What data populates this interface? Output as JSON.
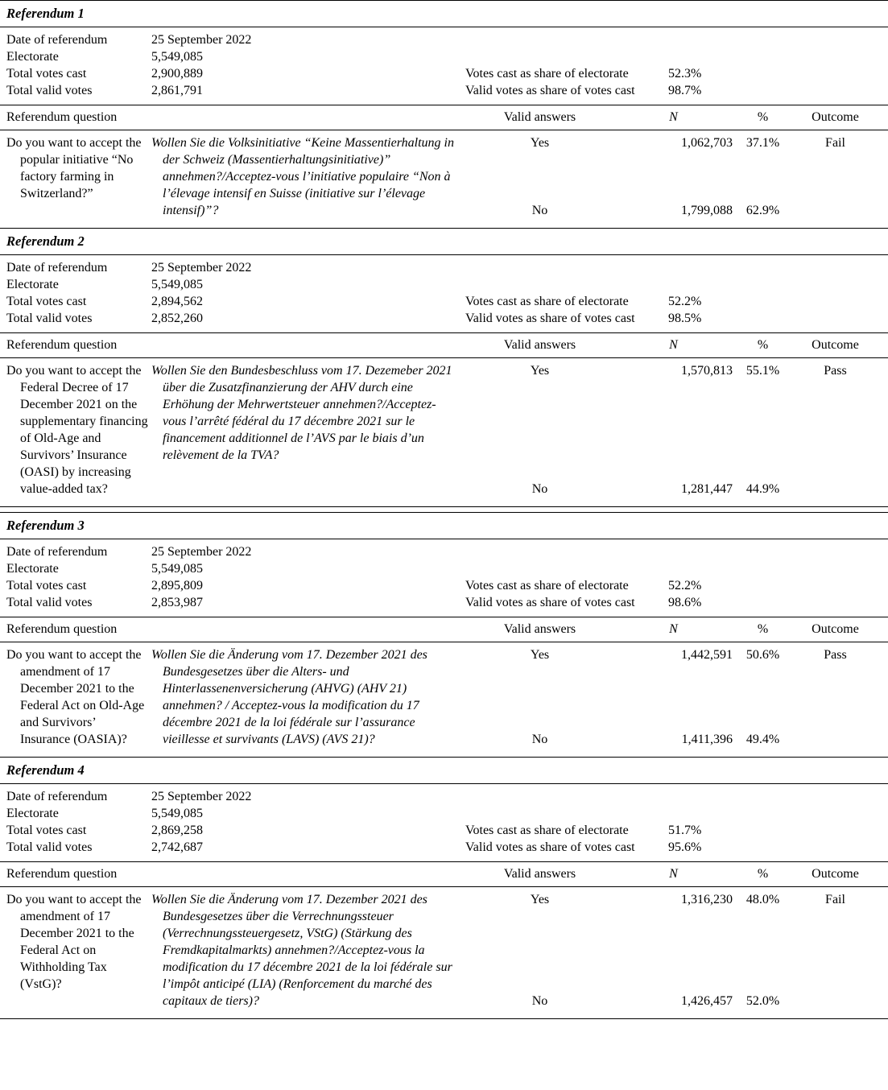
{
  "labels": {
    "date": "Date of referendum",
    "electorate": "Electorate",
    "total_votes_cast": "Total votes cast",
    "total_valid_votes": "Total valid votes",
    "votes_cast_share": "Votes cast as share of electorate",
    "valid_votes_share": "Valid votes as share of votes cast",
    "question_header": "Referendum question",
    "valid_answers_header": "Valid answers",
    "n_header": "N",
    "pct_header": "%",
    "outcome_header": "Outcome",
    "yes": "Yes",
    "no": "No"
  },
  "referendums": [
    {
      "title": "Referendum 1",
      "date": "25 September 2022",
      "electorate": "5,549,085",
      "total_votes_cast": "2,900,889",
      "total_valid_votes": "2,861,791",
      "votes_cast_share": "52.3%",
      "valid_votes_share": "98.7%",
      "question_en": "Do you want to accept the popular initiative “No factory farming in Switzerland?”",
      "question_orig": "Wollen Sie die Volksinitiative “Keine Massentierhaltung in der Schweiz (Massentierhaltungsinitiative)” annehmen?/Acceptez-vous l’initiative populaire “Non à l’élevage intensif en Suisse (initiative sur l’élevage intensif)”?",
      "yes": {
        "n": "1,062,703",
        "pct": "37.1%"
      },
      "no": {
        "n": "1,799,088",
        "pct": "62.9%"
      },
      "outcome": "Fail"
    },
    {
      "title": "Referendum 2",
      "date": "25 September 2022",
      "electorate": "5,549,085",
      "total_votes_cast": "2,894,562",
      "total_valid_votes": "2,852,260",
      "votes_cast_share": "52.2%",
      "valid_votes_share": "98.5%",
      "question_en": "Do you want to accept the Federal Decree of 17 December 2021 on the supplementary financing of Old-Age and Survivors’ Insurance (OASI) by increasing value-added tax?",
      "question_orig": "Wollen Sie den Bundesbeschluss vom 17. Dezemeber 2021 über die Zusatzfinanzierung der AHV durch eine Erhöhung der Mehrwertsteuer annehmen?/Acceptez-vous l’arrêté fédéral du 17 décembre 2021 sur le financement additionnel de l’AVS par le biais d’un relèvement de la TVA?",
      "yes": {
        "n": "1,570,813",
        "pct": "55.1%"
      },
      "no": {
        "n": "1,281,447",
        "pct": "44.9%"
      },
      "outcome": "Pass"
    },
    {
      "title": "Referendum 3",
      "date": "25 September 2022",
      "electorate": "5,549,085",
      "total_votes_cast": "2,895,809",
      "total_valid_votes": "2,853,987",
      "votes_cast_share": "52.2%",
      "valid_votes_share": "98.6%",
      "question_en": "Do you want to accept the amendment of 17 December 2021 to the Federal Act on Old-Age and Survivors’ Insurance (OASIA)?",
      "question_orig": "Wollen Sie die Änderung vom 17. Dezember 2021 des Bundesgesetzes über die Alters- und Hinterlassenenversicherung (AHVG) (AHV 21) annehmen? / Acceptez-vous la modification du 17 décembre 2021 de la loi fédérale sur l’assurance vieillesse et survivants (LAVS) (AVS 21)?",
      "yes": {
        "n": "1,442,591",
        "pct": "50.6%"
      },
      "no": {
        "n": "1,411,396",
        "pct": "49.4%"
      },
      "outcome": "Pass"
    },
    {
      "title": "Referendum 4",
      "date": "25 September 2022",
      "electorate": "5,549,085",
      "total_votes_cast": "2,869,258",
      "total_valid_votes": "2,742,687",
      "votes_cast_share": "51.7%",
      "valid_votes_share": "95.6%",
      "question_en": "Do you want to accept the amendment of 17 December 2021 to the Federal Act on Withholding Tax (VstG)?",
      "question_orig": "Wollen Sie die Änderung vom 17. Dezember 2021 des Bundesgesetzes über die Verrechnungssteuer (Verrechnungssteuergesetz, VStG) (Stärkung des Fremdkapitalmarkts) annehmen?/Acceptez-vous la modification du 17 décembre 2021 de la loi fédérale sur l’impôt anticipé (LIA) (Renforcement du marché des capitaux de tiers)?",
      "yes": {
        "n": "1,316,230",
        "pct": "48.0%"
      },
      "no": {
        "n": "1,426,457",
        "pct": "52.0%"
      },
      "outcome": "Fail"
    }
  ]
}
